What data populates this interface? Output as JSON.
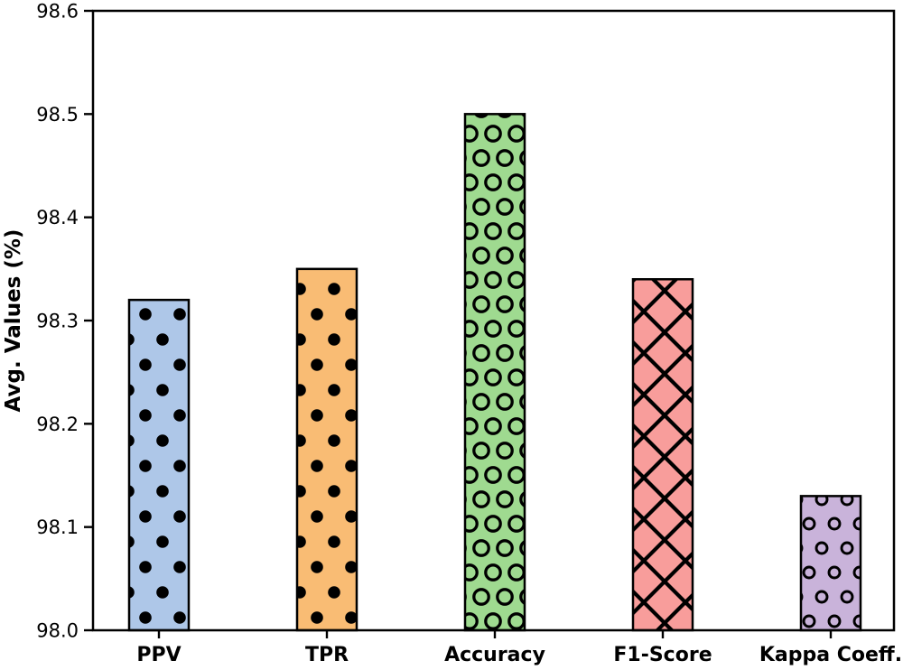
{
  "figure": {
    "background_color": "#ffffff",
    "frame_color": "#000000"
  },
  "chart_data": {
    "type": "bar",
    "title": "",
    "xlabel": "",
    "ylabel": "Avg. Values (%)",
    "categories": [
      "PPV",
      "TPR",
      "Accuracy",
      "F1-Score",
      "Kappa Coeff."
    ],
    "values": [
      98.32,
      98.35,
      98.5,
      98.34,
      98.13
    ],
    "ylim": [
      98.0,
      98.6
    ],
    "yticks": [
      98.0,
      98.1,
      98.2,
      98.3,
      98.4,
      98.5,
      98.6
    ],
    "ytick_labels": [
      "98.0",
      "98.1",
      "98.2",
      "98.3",
      "98.4",
      "98.5",
      "98.6"
    ],
    "grid": false,
    "legend": null,
    "bar_colors": [
      "#aec7e8",
      "#f9bc74",
      "#9fda90",
      "#f89d9b",
      "#c9b3da"
    ],
    "bar_hatches": [
      "filled-dots",
      "filled-dots",
      "large-open-circles",
      "diagonal-crosshatch",
      "small-open-circles"
    ],
    "bar_edge_color": "#000000"
  }
}
